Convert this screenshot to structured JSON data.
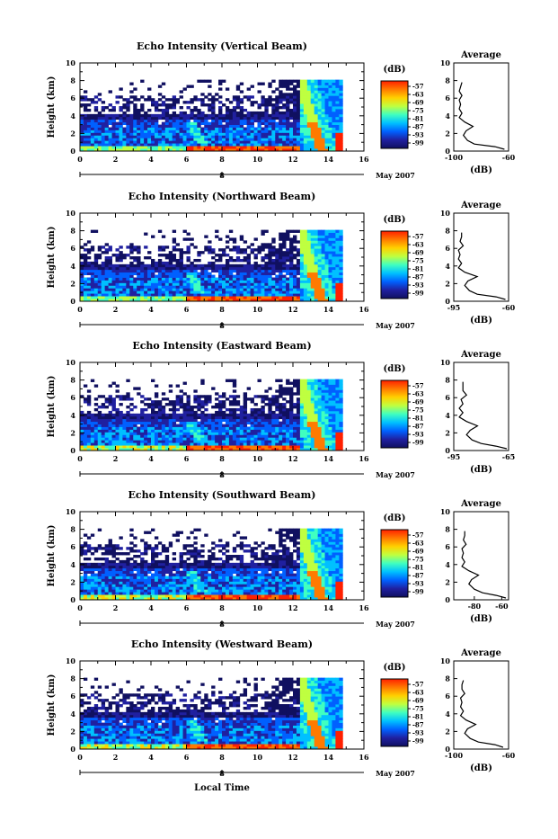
{
  "colorbar": {
    "unit": "(dB)",
    "ticks": [
      "-57",
      "-63",
      "-69",
      "-75",
      "-81",
      "-87",
      "-93",
      "-99"
    ],
    "colors": [
      "#ff2000",
      "#ff7a00",
      "#ffd000",
      "#bfff40",
      "#40ffc0",
      "#00c0ff",
      "#0060ff",
      "#2020a0",
      "#101060"
    ]
  },
  "x_axis": {
    "label": "Local Time",
    "month_label": "May 2007"
  },
  "average_title": "Average",
  "average_xlabel": "(dB)",
  "chart_data": [
    {
      "type": "heatmap",
      "title": "Echo Intensity (Vertical Beam)",
      "ylabel": "Height (km)",
      "xlim": [
        0,
        16
      ],
      "ylim": [
        0,
        10
      ],
      "xticks": [
        "0",
        "2",
        "4",
        "6",
        "8",
        "10",
        "12",
        "14",
        "16"
      ],
      "yticks": [
        "0",
        "2",
        "4",
        "6",
        "8",
        "10"
      ],
      "date_label": "8",
      "average": {
        "xlim": [
          -100,
          -60
        ],
        "xticks": [
          "-100",
          "-60"
        ],
        "yticks": [
          "0",
          "2",
          "4",
          "6",
          "8",
          "10"
        ],
        "profile": [
          [
            -63,
            0.2
          ],
          [
            -70,
            0.5
          ],
          [
            -85,
            0.8
          ],
          [
            -90,
            1.2
          ],
          [
            -93,
            1.8
          ],
          [
            -91,
            2.3
          ],
          [
            -86,
            2.8
          ],
          [
            -92,
            3.3
          ],
          [
            -96,
            3.8
          ],
          [
            -94,
            4.3
          ],
          [
            -96,
            4.8
          ],
          [
            -95,
            5.3
          ],
          [
            -96,
            5.8
          ],
          [
            -94,
            6.3
          ],
          [
            -96,
            6.8
          ],
          [
            -95,
            7.3
          ],
          [
            -94,
            7.8
          ]
        ]
      }
    },
    {
      "type": "heatmap",
      "title": "Echo Intensity (Northward Beam)",
      "ylabel": "Height (km)",
      "xlim": [
        0,
        16
      ],
      "ylim": [
        0,
        10
      ],
      "xticks": [
        "0",
        "2",
        "4",
        "6",
        "8",
        "10",
        "12",
        "14",
        "16"
      ],
      "yticks": [
        "0",
        "2",
        "4",
        "6",
        "8",
        "10"
      ],
      "date_label": "8",
      "average": {
        "xlim": [
          -95,
          -60
        ],
        "xticks": [
          "-95",
          "-60"
        ],
        "yticks": [
          "0",
          "2",
          "4",
          "6",
          "8",
          "10"
        ],
        "profile": [
          [
            -62,
            0.2
          ],
          [
            -68,
            0.5
          ],
          [
            -80,
            0.8
          ],
          [
            -85,
            1.2
          ],
          [
            -88,
            1.8
          ],
          [
            -86,
            2.3
          ],
          [
            -80,
            2.8
          ],
          [
            -88,
            3.3
          ],
          [
            -92,
            3.8
          ],
          [
            -90,
            4.3
          ],
          [
            -92,
            4.8
          ],
          [
            -91,
            5.3
          ],
          [
            -92,
            5.8
          ],
          [
            -89,
            6.3
          ],
          [
            -91,
            6.8
          ],
          [
            -90,
            7.3
          ],
          [
            -90,
            7.8
          ]
        ]
      }
    },
    {
      "type": "heatmap",
      "title": "Echo Intensity (Eastward Beam)",
      "ylabel": "Height (km)",
      "xlim": [
        0,
        16
      ],
      "ylim": [
        0,
        10
      ],
      "xticks": [
        "0",
        "2",
        "4",
        "6",
        "8",
        "10",
        "12",
        "14",
        "16"
      ],
      "yticks": [
        "0",
        "2",
        "4",
        "6",
        "8",
        "10"
      ],
      "date_label": "8",
      "average": {
        "xlim": [
          -95,
          -65
        ],
        "xticks": [
          "-95",
          "-65"
        ],
        "yticks": [
          "0",
          "2",
          "4",
          "6",
          "8",
          "10"
        ],
        "profile": [
          [
            -66,
            0.2
          ],
          [
            -72,
            0.5
          ],
          [
            -80,
            0.8
          ],
          [
            -85,
            1.2
          ],
          [
            -88,
            1.8
          ],
          [
            -86,
            2.3
          ],
          [
            -82,
            2.8
          ],
          [
            -88,
            3.3
          ],
          [
            -92,
            3.8
          ],
          [
            -90,
            4.3
          ],
          [
            -92,
            4.8
          ],
          [
            -90,
            5.3
          ],
          [
            -91,
            5.8
          ],
          [
            -88,
            6.3
          ],
          [
            -90,
            6.8
          ],
          [
            -90,
            7.3
          ],
          [
            -90,
            7.8
          ]
        ]
      }
    },
    {
      "type": "heatmap",
      "title": "Echo Intensity (Southward Beam)",
      "ylabel": "Height (km)",
      "xlim": [
        0,
        16
      ],
      "ylim": [
        0,
        10
      ],
      "xticks": [
        "0",
        "2",
        "4",
        "6",
        "8",
        "10",
        "12",
        "14",
        "16"
      ],
      "yticks": [
        "0",
        "2",
        "4",
        "6",
        "8",
        "10"
      ],
      "date_label": "8",
      "average": {
        "xlim": [
          -95,
          -55
        ],
        "xticks": [
          "-80",
          "-60"
        ],
        "yticks": [
          "0",
          "2",
          "4",
          "6",
          "8",
          "10"
        ],
        "profile": [
          [
            -57,
            0.2
          ],
          [
            -64,
            0.5
          ],
          [
            -74,
            0.8
          ],
          [
            -80,
            1.2
          ],
          [
            -84,
            1.8
          ],
          [
            -82,
            2.3
          ],
          [
            -77,
            2.8
          ],
          [
            -84,
            3.3
          ],
          [
            -89,
            3.8
          ],
          [
            -87,
            4.3
          ],
          [
            -89,
            4.8
          ],
          [
            -88,
            5.3
          ],
          [
            -89,
            5.8
          ],
          [
            -86,
            6.3
          ],
          [
            -88,
            6.8
          ],
          [
            -87,
            7.3
          ],
          [
            -87,
            7.8
          ]
        ]
      }
    },
    {
      "type": "heatmap",
      "title": "Echo Intensity (Westward Beam)",
      "ylabel": "Height (km)",
      "xlim": [
        0,
        16
      ],
      "ylim": [
        0,
        10
      ],
      "xticks": [
        "0",
        "2",
        "4",
        "6",
        "8",
        "10",
        "12",
        "14",
        "16"
      ],
      "yticks": [
        "0",
        "2",
        "4",
        "6",
        "8",
        "10"
      ],
      "date_label": "8",
      "average": {
        "xlim": [
          -100,
          -60
        ],
        "xticks": [
          "-100",
          "-60"
        ],
        "yticks": [
          "0",
          "2",
          "4",
          "6",
          "8",
          "10"
        ],
        "profile": [
          [
            -64,
            0.2
          ],
          [
            -70,
            0.5
          ],
          [
            -82,
            0.8
          ],
          [
            -88,
            1.2
          ],
          [
            -92,
            1.8
          ],
          [
            -90,
            2.3
          ],
          [
            -84,
            2.8
          ],
          [
            -91,
            3.3
          ],
          [
            -95,
            3.8
          ],
          [
            -93,
            4.3
          ],
          [
            -95,
            4.8
          ],
          [
            -94,
            5.3
          ],
          [
            -95,
            5.8
          ],
          [
            -92,
            6.3
          ],
          [
            -94,
            6.8
          ],
          [
            -94,
            7.3
          ],
          [
            -93,
            7.8
          ]
        ]
      }
    }
  ]
}
